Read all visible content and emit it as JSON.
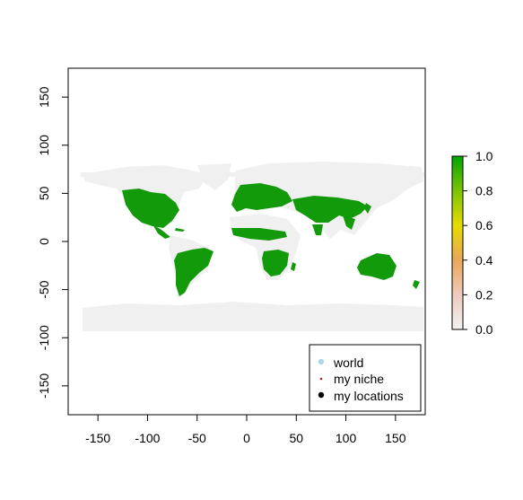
{
  "chart_data": {
    "type": "heatmap",
    "title": "",
    "xlabel": "",
    "ylabel": "",
    "xlim": [
      -180,
      180
    ],
    "ylim": [
      -180,
      180
    ],
    "x_ticks": [
      -150,
      -100,
      -50,
      0,
      50,
      100,
      150
    ],
    "y_ticks": [
      -150,
      -100,
      -50,
      0,
      50,
      100,
      150
    ],
    "x_tick_labels": [
      "-150",
      "-100",
      "-50",
      "0",
      "50",
      "100",
      "150"
    ],
    "y_tick_labels": [
      "-150",
      "-100",
      "-50",
      "0",
      "50",
      "100",
      "150"
    ],
    "grid": false,
    "colors": {
      "world": "#f0f0f0",
      "niche": "#139a0a",
      "locations": "#000000"
    },
    "colorbar": {
      "min": 0.0,
      "max": 1.0,
      "ticks": [
        0.0,
        0.2,
        0.4,
        0.6,
        0.8,
        1.0
      ],
      "tick_labels": [
        "0.0",
        "0.2",
        "0.4",
        "0.6",
        "0.8",
        "1.0"
      ],
      "stops": [
        {
          "value": 0.0,
          "color": "#f2f2f2"
        },
        {
          "value": 0.2,
          "color": "#eecbbd"
        },
        {
          "value": 0.4,
          "color": "#e9a65a"
        },
        {
          "value": 0.6,
          "color": "#e6dc00"
        },
        {
          "value": 0.8,
          "color": "#7cc400"
        },
        {
          "value": 1.0,
          "color": "#00a600"
        }
      ]
    },
    "legend": {
      "placement": "bottom-right",
      "entries": [
        {
          "label": "world",
          "color": "#add8e6",
          "marker": "circle"
        },
        {
          "label": "my niche",
          "color": "#b22222",
          "marker": "small"
        },
        {
          "label": "my locations",
          "color": "#000000",
          "marker": "circle"
        }
      ]
    }
  }
}
